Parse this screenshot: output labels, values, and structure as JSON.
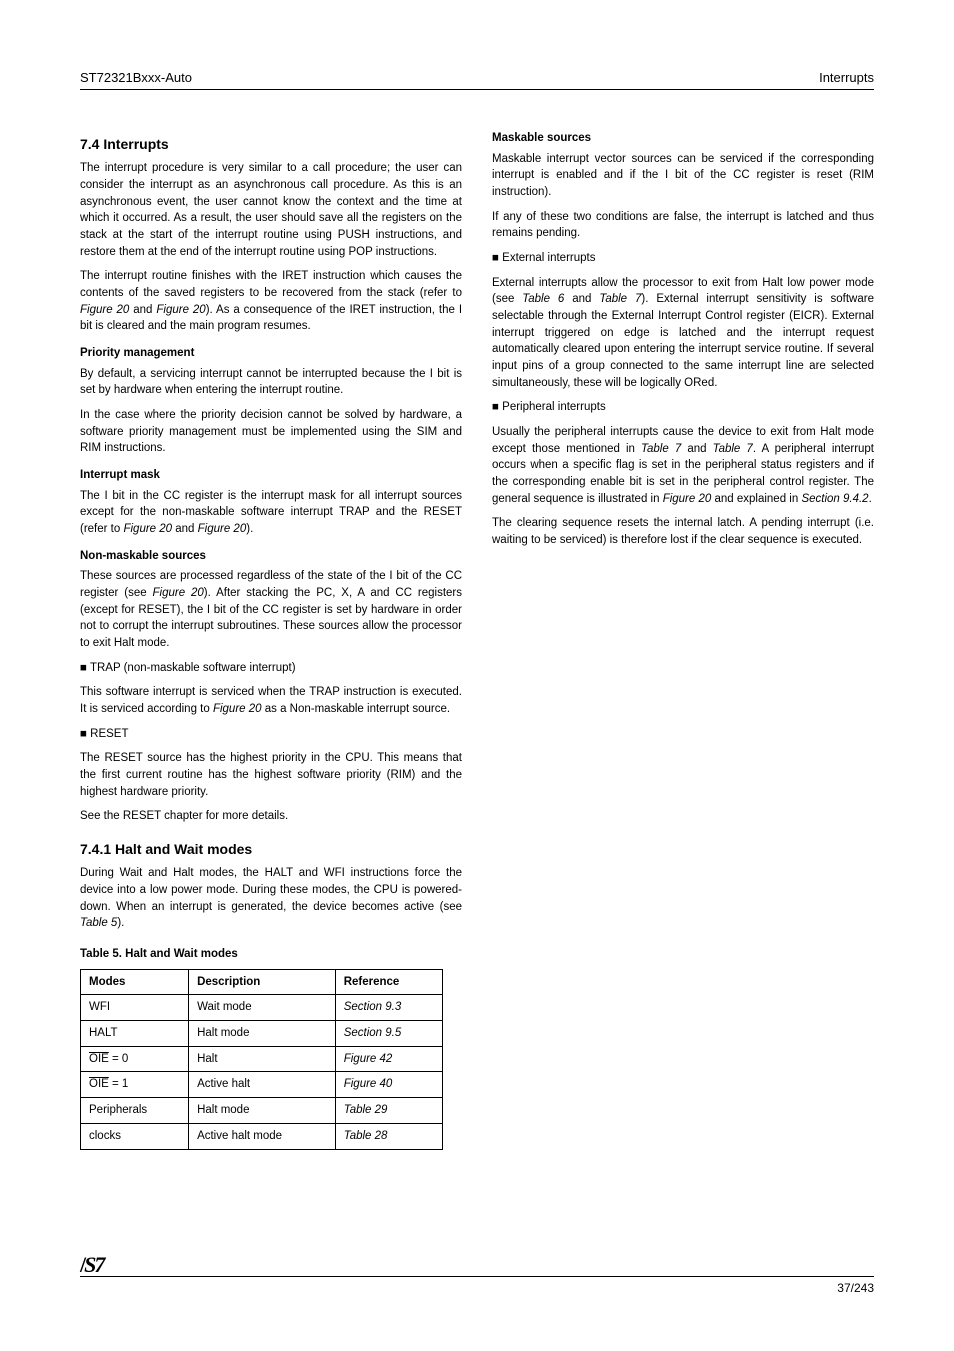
{
  "header": {
    "left": "ST72321Bxxx-Auto",
    "right": "Interrupts"
  },
  "left_col": {
    "h_irq": "7.4 Interrupts",
    "p_irq": "The interrupt procedure is very similar to a call procedure; the user can consider the interrupt as an asynchronous call procedure. As this is an asynchronous event, the user cannot know the context and the time at which it occurred. As a result, the user should save all the registers on the stack at the start of the interrupt routine using PUSH instructions, and restore them at the end of the interrupt routine using POP instructions.",
    "p_irq2a": "The interrupt routine finishes with the IRET instruction which causes the contents of the saved registers to be recovered from the stack (refer to ",
    "p_irq2b": "). As a consequence of the IRET instruction, the I bit is cleared and the main program resumes.",
    "sub_prio": "Priority management",
    "p_prio": "By default, a servicing interrupt cannot be interrupted because the I bit is set by hardware when entering the interrupt routine.",
    "p_prio2": "In the case where the priority decision cannot be solved by hardware, a software priority management must be implemented using the SIM and RIM instructions.",
    "sub_mask": "Interrupt mask",
    "p_mask": "The I bit in the CC register is the interrupt mask for all interrupt sources except for the non-maskable software interrupt TRAP and the RESET (refer to ",
    "p_mask2": ")."
  },
  "right_col": {
    "sub_nmi": "Non-maskable sources",
    "p_nmi": "These sources are processed regardless of the state of the I bit of the CC register (see ",
    "p_nmi2": "). After stacking the PC, X, A and CC registers (except for RESET), the I bit of the CC register is set by hardware in order not to corrupt the interrupt subroutines. These sources allow the processor to exit Halt mode.",
    "b_trap": "TRAP (non-maskable software interrupt)",
    "p_trap": "This software interrupt is serviced when the TRAP instruction is executed. It is serviced according to ",
    "p_trap2": " as a Non-maskable interrupt source.",
    "b_reset": "RESET",
    "p_reset": "The RESET source has the highest priority in the CPU. This means that the first current routine has the highest software priority (RIM) and the highest hardware priority.",
    "p_reset2": "See the RESET chapter for more details.",
    "sub_msk": "Maskable sources",
    "p_msk1": "Maskable interrupt vector sources can be serviced if the corresponding interrupt is enabled and if the I bit of the CC register is reset (RIM instruction).",
    "p_msk2": "If any of these two conditions are false, the interrupt is latched and thus remains pending.",
    "b_ext": "External interrupts",
    "p_ext": "External interrupts allow the processor to exit from Halt low power mode (see ",
    "p_ext2": "). External interrupt sensitivity is software selectable through the External Interrupt Control register (EICR). External interrupt triggered on edge is latched and the interrupt request automatically cleared upon entering the interrupt service routine. If several input pins of a group connected to the same interrupt line are selected simultaneously, these will be logically ORed.",
    "b_per": "Peripheral interrupts",
    "p_per1": "Usually the peripheral interrupts cause the device to exit from Halt mode except those mentioned in ",
    "p_per1b": ". A peripheral interrupt occurs when a specific flag is set in the peripheral status registers and if the corresponding enable bit is set in the peripheral control register. The general sequence is illustrated in ",
    "p_per1c": ".",
    "p_per2": "The clearing sequence resets the internal latch. A pending interrupt (i.e. waiting to be serviced) is therefore lost if the clear sequence is executed."
  },
  "halt": {
    "h": "7.4.1 Halt and Wait modes",
    "p": "During Wait and Halt modes, the HALT and WFI instructions force the device into a low power mode. During these modes, the CPU is powered-down. When an interrupt is generated, the device becomes active (see "
  },
  "table": {
    "caption": "Table 5. Halt and Wait modes",
    "headers": [
      "Modes",
      "Description",
      "Reference"
    ],
    "rows": [
      [
        "WFI",
        "Wait mode",
        "Section 9.3"
      ],
      [
        "HALT",
        "Halt mode",
        "Section 9.5"
      ],
      [
        "OIE = 0",
        "Halt",
        "Figure 42"
      ],
      [
        "OIE = 1",
        "Active halt",
        "Figure 40"
      ],
      [
        "Peripherals",
        "Halt mode",
        "Table 29"
      ],
      [
        "clocks",
        "Active halt mode",
        "Table 28"
      ]
    ]
  },
  "refs": {
    "fig20a": "Figure 20",
    "fig20b": "Figure 20",
    "fig20c": "Figure 20",
    "fig20d": "Figure 20",
    "fig20e": "Figure 20",
    "fig20f": "Figure 20",
    "fig20g": "Figure 20",
    "tab6": "Table 6",
    "tab7a": "Table 7",
    "tab7b": "Table 7",
    "tab7c": "Table 7",
    "tab5": "Table 5",
    "sec942": "Section 9.4.2"
  },
  "footer": {
    "pagenum": "37/243"
  }
}
